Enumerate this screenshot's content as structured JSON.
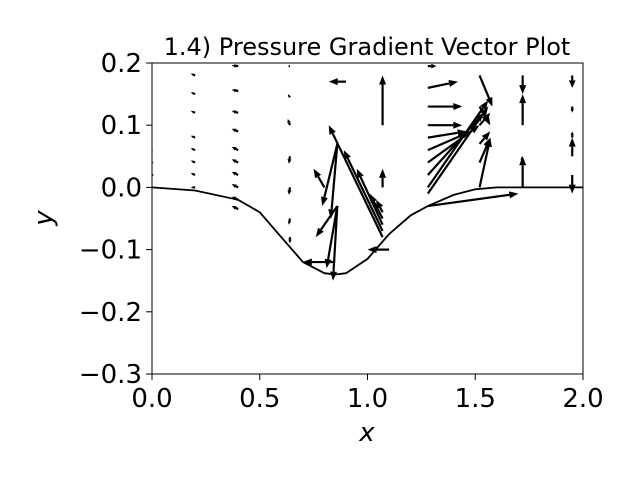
{
  "chart_data": {
    "type": "quiver",
    "title": "1.4) Pressure Gradient Vector Plot",
    "xlabel": "x",
    "ylabel": "y",
    "xlim": [
      0.0,
      2.0
    ],
    "ylim": [
      -0.3,
      0.2
    ],
    "xticks": [
      "0.0",
      "0.5",
      "1.0",
      "1.5",
      "2.0"
    ],
    "xtick_values": [
      0.0,
      0.5,
      1.0,
      1.5,
      2.0
    ],
    "yticks": [
      "−0.3",
      "−0.2",
      "−0.1",
      "0.0",
      "0.1",
      "0.2"
    ],
    "ytick_values": [
      -0.3,
      -0.2,
      -0.1,
      0.0,
      0.1,
      0.2
    ],
    "grid": false,
    "legend": "none",
    "arrow_color": "#000000",
    "curve": {
      "x": [
        0.0,
        0.2,
        0.4,
        0.5,
        0.6,
        0.7,
        0.8,
        0.85,
        0.9,
        1.0,
        1.1,
        1.2,
        1.28,
        1.4,
        1.5,
        1.6,
        1.7,
        1.8,
        2.0
      ],
      "y": [
        0.0,
        -0.005,
        -0.02,
        -0.04,
        -0.08,
        -0.12,
        -0.138,
        -0.14,
        -0.138,
        -0.115,
        -0.075,
        -0.045,
        -0.03,
        -0.012,
        -0.003,
        0.0,
        0.0,
        0.0,
        0.0
      ]
    },
    "vectors": [
      {
        "x": 0.0,
        "y": 0.0,
        "u": 0.01,
        "v": 0.0
      },
      {
        "x": 0.0,
        "y": 0.02,
        "u": 0.01,
        "v": 0.0
      },
      {
        "x": 0.0,
        "y": 0.04,
        "u": 0.008,
        "v": 0.0
      },
      {
        "x": 0.0,
        "y": 0.06,
        "u": 0.006,
        "v": 0.0
      },
      {
        "x": 0.2,
        "y": 0.0,
        "u": -0.02,
        "v": 0.0
      },
      {
        "x": 0.2,
        "y": 0.02,
        "u": -0.02,
        "v": 0.003
      },
      {
        "x": 0.2,
        "y": 0.04,
        "u": -0.02,
        "v": 0.003
      },
      {
        "x": 0.2,
        "y": 0.06,
        "u": -0.02,
        "v": 0.003
      },
      {
        "x": 0.2,
        "y": 0.08,
        "u": -0.02,
        "v": 0.003
      },
      {
        "x": 0.2,
        "y": 0.12,
        "u": -0.02,
        "v": 0.003
      },
      {
        "x": 0.2,
        "y": 0.15,
        "u": -0.02,
        "v": 0.003
      },
      {
        "x": 0.2,
        "y": 0.18,
        "u": -0.02,
        "v": 0.003
      },
      {
        "x": 0.4,
        "y": -0.035,
        "u": -0.03,
        "v": 0.005
      },
      {
        "x": 0.4,
        "y": -0.02,
        "u": -0.03,
        "v": 0.005
      },
      {
        "x": 0.4,
        "y": 0.0,
        "u": -0.03,
        "v": 0.005
      },
      {
        "x": 0.4,
        "y": 0.02,
        "u": -0.03,
        "v": 0.005
      },
      {
        "x": 0.4,
        "y": 0.04,
        "u": -0.03,
        "v": 0.005
      },
      {
        "x": 0.4,
        "y": 0.06,
        "u": -0.03,
        "v": 0.005
      },
      {
        "x": 0.4,
        "y": 0.09,
        "u": -0.03,
        "v": 0.004
      },
      {
        "x": 0.4,
        "y": 0.12,
        "u": -0.03,
        "v": 0.003
      },
      {
        "x": 0.4,
        "y": 0.155,
        "u": -0.03,
        "v": 0.002
      },
      {
        "x": 0.4,
        "y": 0.195,
        "u": -0.03,
        "v": 0.001
      },
      {
        "x": 0.64,
        "y": -0.08,
        "u": 0.0,
        "v": -0.01
      },
      {
        "x": 0.64,
        "y": -0.05,
        "u": -0.005,
        "v": -0.01
      },
      {
        "x": 0.64,
        "y": 0.0,
        "u": -0.005,
        "v": -0.012
      },
      {
        "x": 0.64,
        "y": 0.05,
        "u": -0.005,
        "v": -0.012
      },
      {
        "x": 0.64,
        "y": 0.1,
        "u": -0.01,
        "v": 0.01
      },
      {
        "x": 0.64,
        "y": 0.145,
        "u": -0.01,
        "v": 0.005
      },
      {
        "x": 0.64,
        "y": 0.195,
        "u": -0.01,
        "v": 0.0
      },
      {
        "x": 0.85,
        "y": -0.12,
        "u": -0.15,
        "v": 0.0
      },
      {
        "x": 0.86,
        "y": -0.03,
        "u": -0.1,
        "v": -0.05
      },
      {
        "x": 0.86,
        "y": -0.03,
        "u": -0.05,
        "v": -0.1
      },
      {
        "x": 0.86,
        "y": -0.03,
        "u": -0.02,
        "v": -0.12
      },
      {
        "x": 0.8,
        "y": 0.0,
        "u": -0.05,
        "v": 0.03
      },
      {
        "x": 0.86,
        "y": 0.07,
        "u": -0.07,
        "v": -0.1
      },
      {
        "x": 0.86,
        "y": 0.07,
        "u": -0.03,
        "v": -0.12
      },
      {
        "x": 0.9,
        "y": 0.17,
        "u": -0.08,
        "v": 0.0
      },
      {
        "x": 1.07,
        "y": -0.08,
        "u": -0.25,
        "v": 0.18
      },
      {
        "x": 1.07,
        "y": -0.07,
        "u": -0.18,
        "v": 0.13
      },
      {
        "x": 1.07,
        "y": -0.06,
        "u": -0.12,
        "v": 0.09
      },
      {
        "x": 1.07,
        "y": -0.05,
        "u": -0.06,
        "v": 0.04
      },
      {
        "x": 1.07,
        "y": -0.04,
        "u": -0.03,
        "v": 0.02
      },
      {
        "x": 1.07,
        "y": 0.1,
        "u": 0.0,
        "v": 0.08
      },
      {
        "x": 1.07,
        "y": 0.0,
        "u": 0.0,
        "v": 0.03
      },
      {
        "x": 1.1,
        "y": -0.1,
        "u": -0.1,
        "v": 0.0
      },
      {
        "x": 1.28,
        "y": -0.03,
        "u": 0.42,
        "v": 0.02
      },
      {
        "x": 1.28,
        "y": -0.01,
        "u": 0.28,
        "v": 0.14
      },
      {
        "x": 1.28,
        "y": 0.0,
        "u": 0.28,
        "v": 0.14
      },
      {
        "x": 1.28,
        "y": 0.02,
        "u": 0.26,
        "v": 0.1
      },
      {
        "x": 1.28,
        "y": 0.04,
        "u": 0.24,
        "v": 0.06
      },
      {
        "x": 1.28,
        "y": 0.06,
        "u": 0.2,
        "v": 0.03
      },
      {
        "x": 1.28,
        "y": 0.08,
        "u": 0.18,
        "v": 0.01
      },
      {
        "x": 1.28,
        "y": 0.1,
        "u": 0.16,
        "v": 0.0
      },
      {
        "x": 1.28,
        "y": 0.13,
        "u": 0.16,
        "v": 0.0
      },
      {
        "x": 1.28,
        "y": 0.16,
        "u": 0.14,
        "v": 0.01
      },
      {
        "x": 1.28,
        "y": 0.195,
        "u": 0.04,
        "v": 0.0
      },
      {
        "x": 1.52,
        "y": 0.0,
        "u": 0.05,
        "v": 0.08
      },
      {
        "x": 1.52,
        "y": 0.04,
        "u": 0.05,
        "v": 0.04
      },
      {
        "x": 1.52,
        "y": 0.07,
        "u": 0.05,
        "v": 0.02
      },
      {
        "x": 1.52,
        "y": 0.1,
        "u": 0.05,
        "v": 0.02
      },
      {
        "x": 1.52,
        "y": 0.13,
        "u": 0.05,
        "v": -0.03
      },
      {
        "x": 1.52,
        "y": 0.18,
        "u": 0.06,
        "v": -0.05
      },
      {
        "x": 1.72,
        "y": 0.0,
        "u": 0.0,
        "v": 0.05
      },
      {
        "x": 1.72,
        "y": 0.04,
        "u": -0.005,
        "v": 0.01
      },
      {
        "x": 1.72,
        "y": 0.1,
        "u": 0.0,
        "v": 0.05
      },
      {
        "x": 1.72,
        "y": 0.18,
        "u": 0.0,
        "v": -0.03
      },
      {
        "x": 1.95,
        "y": 0.02,
        "u": 0.0,
        "v": -0.03
      },
      {
        "x": 1.95,
        "y": 0.05,
        "u": 0.0,
        "v": 0.03
      },
      {
        "x": 1.95,
        "y": 0.08,
        "u": 0.0,
        "v": 0.01
      },
      {
        "x": 1.95,
        "y": 0.13,
        "u": 0.0,
        "v": -0.01
      },
      {
        "x": 1.95,
        "y": 0.18,
        "u": 0.0,
        "v": -0.02
      }
    ]
  }
}
